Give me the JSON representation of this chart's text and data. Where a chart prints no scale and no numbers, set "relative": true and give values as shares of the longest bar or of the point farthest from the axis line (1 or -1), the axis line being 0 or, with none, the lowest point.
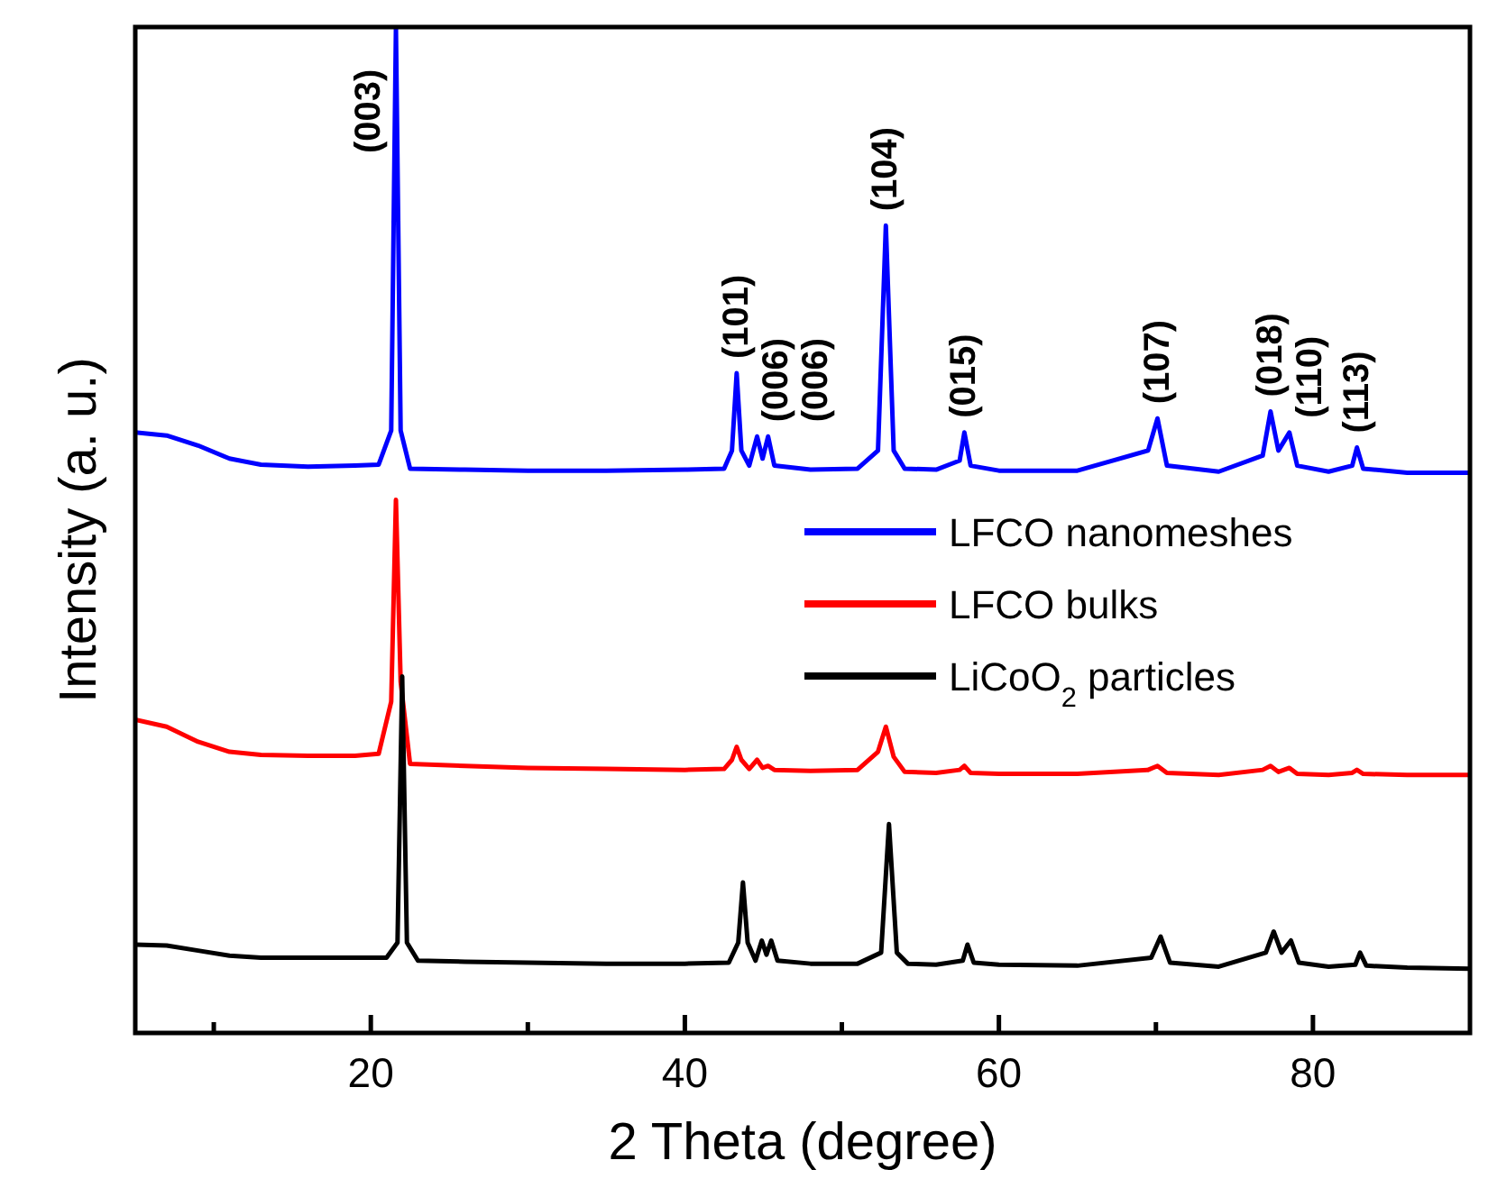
{
  "chart_data": {
    "type": "line",
    "relative": true,
    "xlabel": "2 Theta (degree)",
    "ylabel": "Intensity (a. u.)",
    "legend": "right",
    "xlim": [
      5,
      90
    ],
    "xticks": [
      {
        "value": 10,
        "label": null
      },
      20,
      {
        "value": 30,
        "label": null
      },
      40,
      {
        "value": 50,
        "label": null
      },
      60,
      {
        "value": 70,
        "label": null
      },
      80
    ],
    "x": [
      5,
      7,
      9,
      11,
      13,
      16,
      19,
      20.5,
      21.3,
      21.6,
      21.9,
      22.5,
      26,
      30,
      35,
      40,
      42.5,
      43.0,
      43.3,
      43.6,
      44.1,
      44.6,
      44.95,
      45.3,
      45.7,
      48,
      51,
      52.3,
      52.8,
      53.3,
      54,
      56,
      57.5,
      57.8,
      58.2,
      60,
      65,
      69.5,
      70.1,
      70.7,
      74,
      76.8,
      77.3,
      77.8,
      78.5,
      79.0,
      81,
      82.5,
      82.8,
      83.2,
      86,
      90
    ],
    "series": [
      {
        "name": "LFCO nanomeshes",
        "color": "#0000ff",
        "values": [
          0.598,
          0.595,
          0.585,
          0.572,
          0.566,
          0.564,
          0.565,
          0.566,
          0.6,
          1.0,
          0.6,
          0.562,
          0.561,
          0.56,
          0.56,
          0.561,
          0.562,
          0.58,
          0.657,
          0.58,
          0.565,
          0.594,
          0.572,
          0.594,
          0.565,
          0.561,
          0.562,
          0.58,
          0.804,
          0.58,
          0.562,
          0.561,
          0.57,
          0.598,
          0.565,
          0.56,
          0.56,
          0.58,
          0.612,
          0.565,
          0.559,
          0.575,
          0.619,
          0.58,
          0.598,
          0.565,
          0.559,
          0.565,
          0.583,
          0.562,
          0.558,
          0.558
        ]
      },
      {
        "name": "LFCO bulks",
        "color": "#ff0000",
        "values": [
          0.312,
          0.305,
          0.29,
          0.28,
          0.277,
          0.276,
          0.276,
          0.278,
          0.33,
          0.531,
          0.35,
          0.268,
          0.266,
          0.264,
          0.263,
          0.262,
          0.263,
          0.272,
          0.285,
          0.272,
          0.263,
          0.272,
          0.264,
          0.266,
          0.262,
          0.261,
          0.262,
          0.28,
          0.305,
          0.275,
          0.26,
          0.259,
          0.262,
          0.266,
          0.259,
          0.258,
          0.258,
          0.262,
          0.266,
          0.259,
          0.257,
          0.262,
          0.266,
          0.26,
          0.264,
          0.258,
          0.257,
          0.259,
          0.262,
          0.258,
          0.257,
          0.257
        ]
      },
      {
        "name": "LiCoO$_{2}$ particles",
        "color": "#000000",
        "x": [
          5,
          7,
          9,
          11,
          13,
          16,
          19,
          21.0,
          21.7,
          22.0,
          22.3,
          23,
          26,
          30,
          35,
          40,
          42.8,
          43.4,
          43.7,
          44.0,
          44.5,
          44.9,
          45.2,
          45.5,
          45.9,
          48,
          51,
          52.5,
          53.0,
          53.5,
          54.2,
          56,
          57.7,
          58.0,
          58.4,
          60,
          65,
          69.7,
          70.3,
          70.9,
          74,
          77.0,
          77.5,
          78.0,
          78.6,
          79.1,
          81,
          82.7,
          83.0,
          83.4,
          86,
          90
        ],
        "values": [
          0.088,
          0.087,
          0.082,
          0.077,
          0.075,
          0.075,
          0.075,
          0.075,
          0.09,
          0.355,
          0.09,
          0.072,
          0.071,
          0.07,
          0.069,
          0.069,
          0.07,
          0.09,
          0.15,
          0.09,
          0.072,
          0.092,
          0.078,
          0.092,
          0.072,
          0.069,
          0.069,
          0.08,
          0.208,
          0.08,
          0.069,
          0.068,
          0.072,
          0.088,
          0.07,
          0.068,
          0.067,
          0.075,
          0.096,
          0.07,
          0.066,
          0.08,
          0.101,
          0.08,
          0.092,
          0.07,
          0.066,
          0.068,
          0.08,
          0.067,
          0.065,
          0.064
        ]
      }
    ],
    "annotations": [
      {
        "text": "(003)",
        "x": 21.6,
        "y": 1.0
      },
      {
        "text": "(101)",
        "x": 43.3,
        "y": 0.657
      },
      {
        "text": "(006)",
        "x": 44.6,
        "y": 0.594
      },
      {
        "text": "(006)",
        "x": 45.3,
        "y": 0.594
      },
      {
        "text": "(104)",
        "x": 52.8,
        "y": 0.804
      },
      {
        "text": "(015)",
        "x": 57.8,
        "y": 0.598
      },
      {
        "text": "(107)",
        "x": 70.1,
        "y": 0.612
      },
      {
        "text": "(018)",
        "x": 77.3,
        "y": 0.619
      },
      {
        "text": "(110)",
        "x": 78.5,
        "y": 0.598
      },
      {
        "text": "(113)",
        "x": 82.8,
        "y": 0.583
      }
    ]
  }
}
